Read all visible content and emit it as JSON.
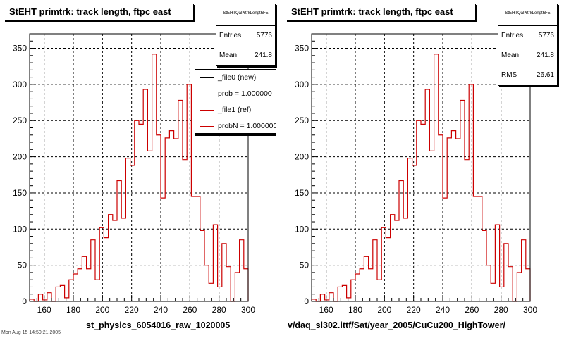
{
  "colors": {
    "new": "#000000",
    "ref": "#cc0000",
    "grid": "#000000"
  },
  "pads": [
    {
      "title": "StEHT primtrk: track length, ftpc east",
      "stats": {
        "name": "StEHTQaPrtrkLengthFE",
        "rows": [
          {
            "label": "Entries",
            "value": "5776"
          },
          {
            "label": "Mean",
            "value": "241.8"
          }
        ]
      },
      "legend": [
        {
          "label": "_file0 (new)",
          "color": "#000000"
        },
        {
          "label": "prob = 1.000000",
          "color": "#000000"
        },
        {
          "label": "_file1 (ref)",
          "color": "#cc0000"
        },
        {
          "label": "probN = 1.000000",
          "color": "#cc0000"
        }
      ],
      "xlabel": "st_physics_6054016_raw_1020005"
    },
    {
      "title": "StEHT primtrk: track length, ftpc east",
      "stats": {
        "name": "StEHTQaPrtrkLengthFE",
        "rows": [
          {
            "label": "Entries",
            "value": "5776"
          },
          {
            "label": "Mean",
            "value": "241.8"
          },
          {
            "label": "RMS",
            "value": "26.61"
          }
        ]
      },
      "legend": [],
      "xlabel": "v/daq_sl302.ittf/Sat/year_2005/CuCu200_HighTower/"
    }
  ],
  "footer": "Mon Aug 15 14:50:21 2005",
  "chart_data": {
    "type": "histogram",
    "title": "StEHT primtrk: track length, ftpc east",
    "xlim": [
      150,
      300
    ],
    "ylim": [
      0,
      370
    ],
    "xticks": [
      160,
      180,
      200,
      220,
      240,
      260,
      280,
      300
    ],
    "yticks": [
      0,
      50,
      100,
      150,
      200,
      250,
      300,
      350
    ],
    "grid": true,
    "bin_edges": [
      150,
      153,
      156,
      159,
      162,
      165,
      168,
      171,
      174,
      177,
      180,
      183,
      186,
      189,
      192,
      195,
      198,
      201,
      204,
      207,
      210,
      213,
      216,
      219,
      222,
      225,
      228,
      231,
      234,
      237,
      240,
      243,
      246,
      249,
      252,
      255,
      258,
      261,
      264,
      267,
      270,
      273,
      276,
      279,
      282,
      285,
      288,
      291,
      294,
      297,
      300
    ],
    "series": [
      {
        "name": "_file1 (ref)",
        "values": [
          3,
          0,
          10,
          2,
          12,
          0,
          20,
          22,
          5,
          30,
          38,
          45,
          62,
          45,
          85,
          30,
          102,
          88,
          120,
          112,
          167,
          115,
          198,
          188,
          250,
          245,
          293,
          208,
          342,
          230,
          143,
          226,
          236,
          225,
          278,
          196,
          300,
          145,
          145,
          98,
          50,
          25,
          106,
          20,
          80,
          48,
          0,
          40,
          85,
          45
        ]
      }
    ]
  }
}
